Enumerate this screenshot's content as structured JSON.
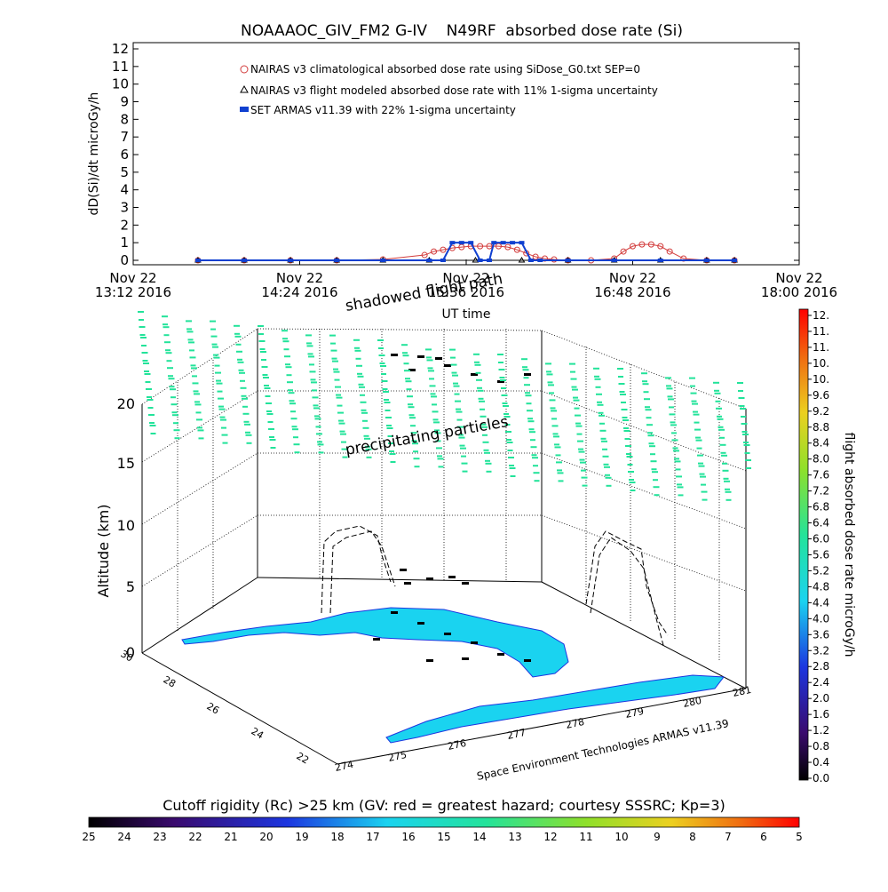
{
  "chart_data": [
    {
      "type": "line",
      "title": "NOAAAOC_GIV_FM2 G-IV    N49RF  absorbed dose rate (Si)",
      "ylabel": "dD(Si)/dt microGy/h",
      "xlabel": "UT time",
      "ylim": [
        0,
        12
      ],
      "yticks": [
        "0",
        "1",
        "2",
        "3",
        "4",
        "5",
        "6",
        "7",
        "8",
        "9",
        "10",
        "11",
        "12"
      ],
      "x_range_min": [
        792,
        1080
      ],
      "xticks": [
        {
          "min": 792,
          "line1": "Nov 22",
          "line2": "13:12 2016"
        },
        {
          "min": 864,
          "line1": "Nov 22",
          "line2": "14:24 2016"
        },
        {
          "min": 936,
          "line1": "Nov 22",
          "line2": "15:36 2016"
        },
        {
          "min": 1008,
          "line1": "Nov 22",
          "line2": "16:48 2016"
        },
        {
          "min": 1080,
          "line1": "Nov 22",
          "line2": "18:00 2016"
        }
      ],
      "legend_position": "top",
      "series": [
        {
          "name": "NAIRAS v3 climatological absorbed dose rate using SiDose_G0.txt SEP=0",
          "marker": "circle-x",
          "color": "#d23c3c",
          "x": [
            820,
            840,
            860,
            880,
            900,
            918,
            922,
            926,
            930,
            934,
            938,
            942,
            946,
            950,
            954,
            958,
            962,
            966,
            970,
            974,
            980,
            990,
            1000,
            1004,
            1008,
            1012,
            1016,
            1020,
            1024,
            1030,
            1040,
            1052
          ],
          "y": [
            0,
            0,
            0,
            0,
            0.05,
            0.3,
            0.5,
            0.6,
            0.7,
            0.75,
            0.8,
            0.8,
            0.8,
            0.8,
            0.75,
            0.6,
            0.4,
            0.2,
            0.1,
            0.05,
            0,
            0,
            0.1,
            0.5,
            0.8,
            0.9,
            0.9,
            0.8,
            0.5,
            0.1,
            0,
            0
          ]
        },
        {
          "name": "NAIRAS v3 flight modeled absorbed dose rate with 11% 1-sigma uncertainty",
          "marker": "triangle",
          "color": "#000000",
          "x": [
            820,
            840,
            860,
            880,
            900,
            920,
            940,
            960,
            980,
            1000,
            1020,
            1040,
            1052
          ],
          "y": [
            0,
            0,
            0,
            0,
            0,
            0,
            0,
            0,
            0,
            0,
            0,
            0,
            0
          ]
        },
        {
          "name": "SET ARMAS v11.39 with 22% 1-sigma uncertainty",
          "marker": "square",
          "color": "#1040d0",
          "x": [
            820,
            840,
            860,
            880,
            900,
            920,
            926,
            930,
            934,
            938,
            942,
            946,
            948,
            952,
            956,
            960,
            964,
            968,
            980,
            1000,
            1020,
            1040,
            1052
          ],
          "y": [
            0,
            0,
            0,
            0,
            0,
            0,
            0,
            1.0,
            1.0,
            1.0,
            0,
            0,
            1.0,
            1.0,
            1.0,
            1.0,
            0,
            0,
            0,
            0,
            0,
            0,
            0
          ]
        }
      ]
    },
    {
      "type": "scatter",
      "subtype": "3d-flight-track",
      "ylabel": "Altitude (km)",
      "zticks": [
        "0",
        "5",
        "10",
        "15",
        "20"
      ],
      "lat_ticks": [
        "30",
        "28",
        "26",
        "24",
        "22"
      ],
      "lon_ticks": [
        "274",
        "275",
        "276",
        "277",
        "278",
        "279",
        "280",
        "281"
      ],
      "annotations": [
        "shadowed flight path",
        "precipitating particles",
        "Space Environment Technologies ARMAS v11.39"
      ],
      "colorbar": {
        "label": "flight absorbed dose rate microGy/h",
        "ticks": [
          "0.0",
          "0.4",
          "0.8",
          "1.2",
          "1.6",
          "2.0",
          "2.4",
          "2.8",
          "3.2",
          "3.6",
          "4.0",
          "4.4",
          "4.8",
          "5.2",
          "5.6",
          "6.0",
          "6.4",
          "6.8",
          "7.2",
          "7.6",
          "8.0",
          "8.4",
          "8.8",
          "9.2",
          "9.6",
          "10.",
          "10.",
          "11.",
          "11.",
          "12."
        ]
      }
    },
    {
      "type": "heatmap",
      "subtype": "horizontal-colorbar",
      "title": "Cutoff rigidity (Rc) >25 km (GV: red = greatest hazard; courtesy SSSRC; Kp=3)",
      "ticks": [
        "25",
        "24",
        "23",
        "22",
        "21",
        "20",
        "19",
        "18",
        "17",
        "16",
        "15",
        "14",
        "13",
        "12",
        "11",
        "10",
        "9",
        "8",
        "7",
        "6",
        "5"
      ]
    }
  ]
}
